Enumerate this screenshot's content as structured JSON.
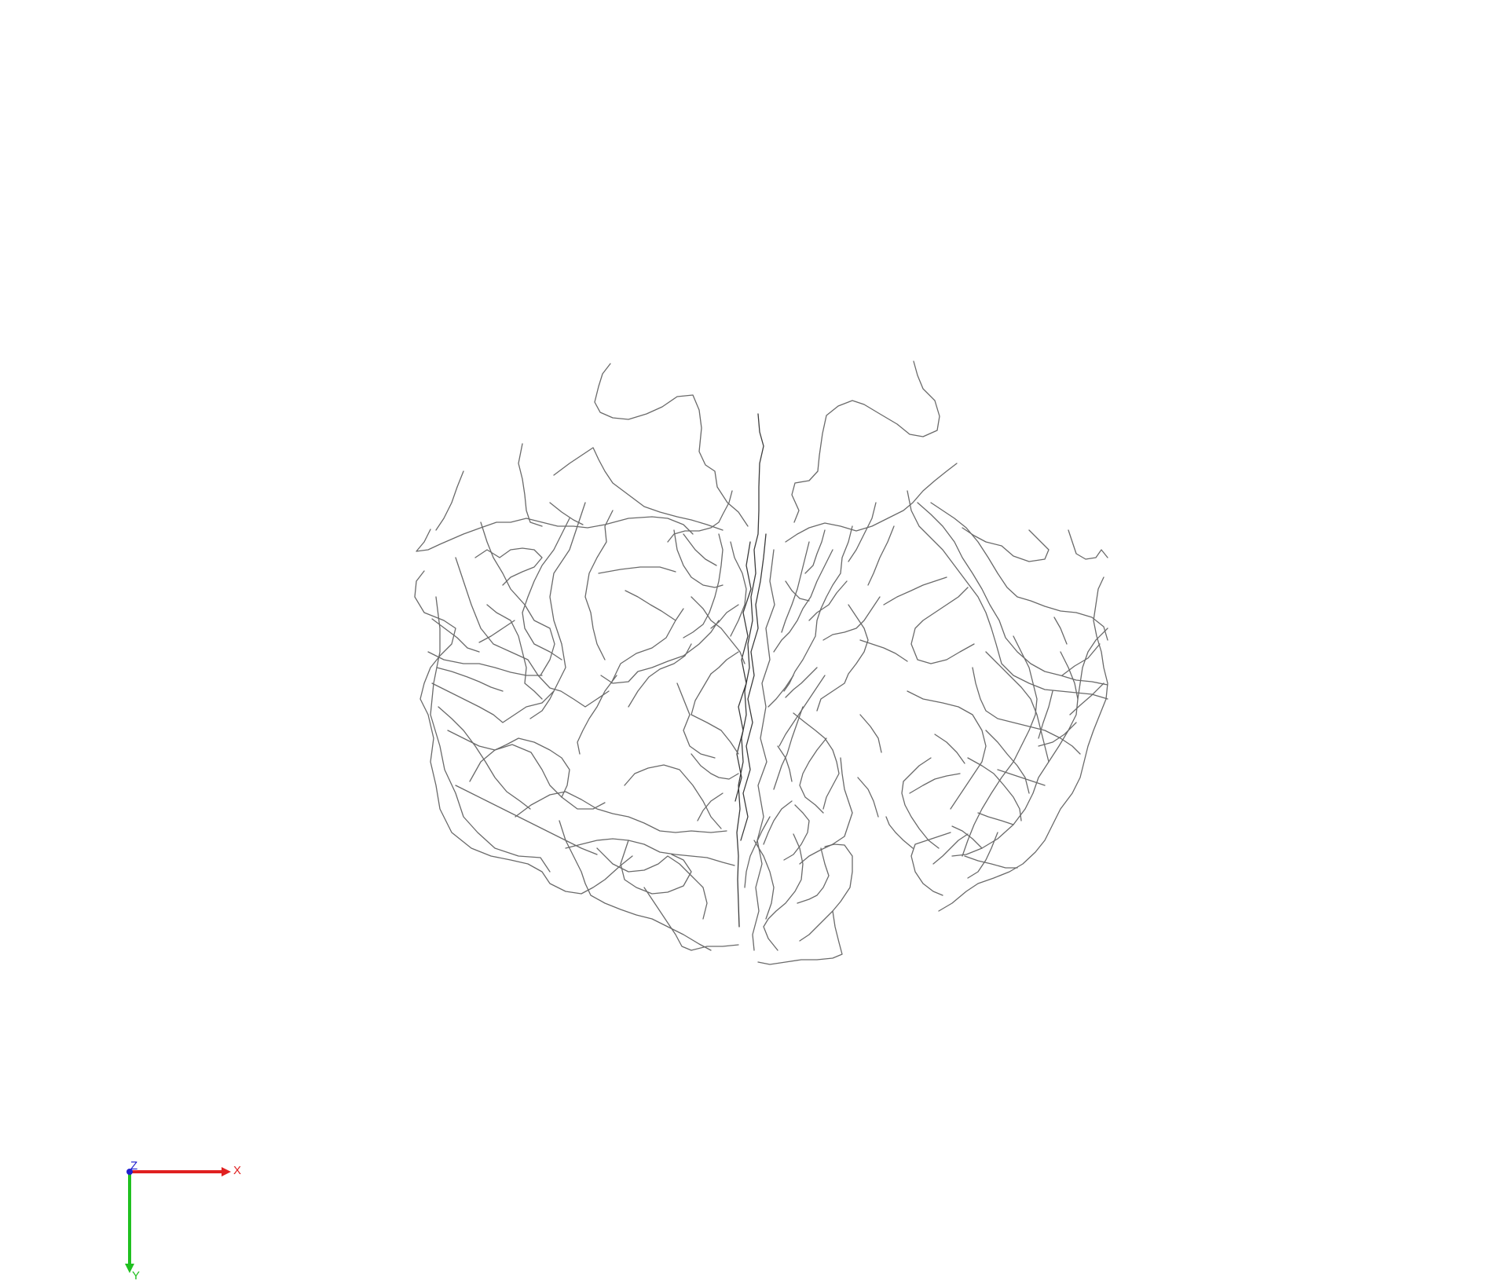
{
  "viewer": {
    "background": "#ffffff",
    "trace_color": "#6a6a6a"
  },
  "orientation_triad": {
    "axes": [
      {
        "label": "X",
        "color": "#e02020"
      },
      {
        "label": "Y",
        "color": "#20c020"
      },
      {
        "label": "Z",
        "color": "#2020d0"
      }
    ]
  }
}
